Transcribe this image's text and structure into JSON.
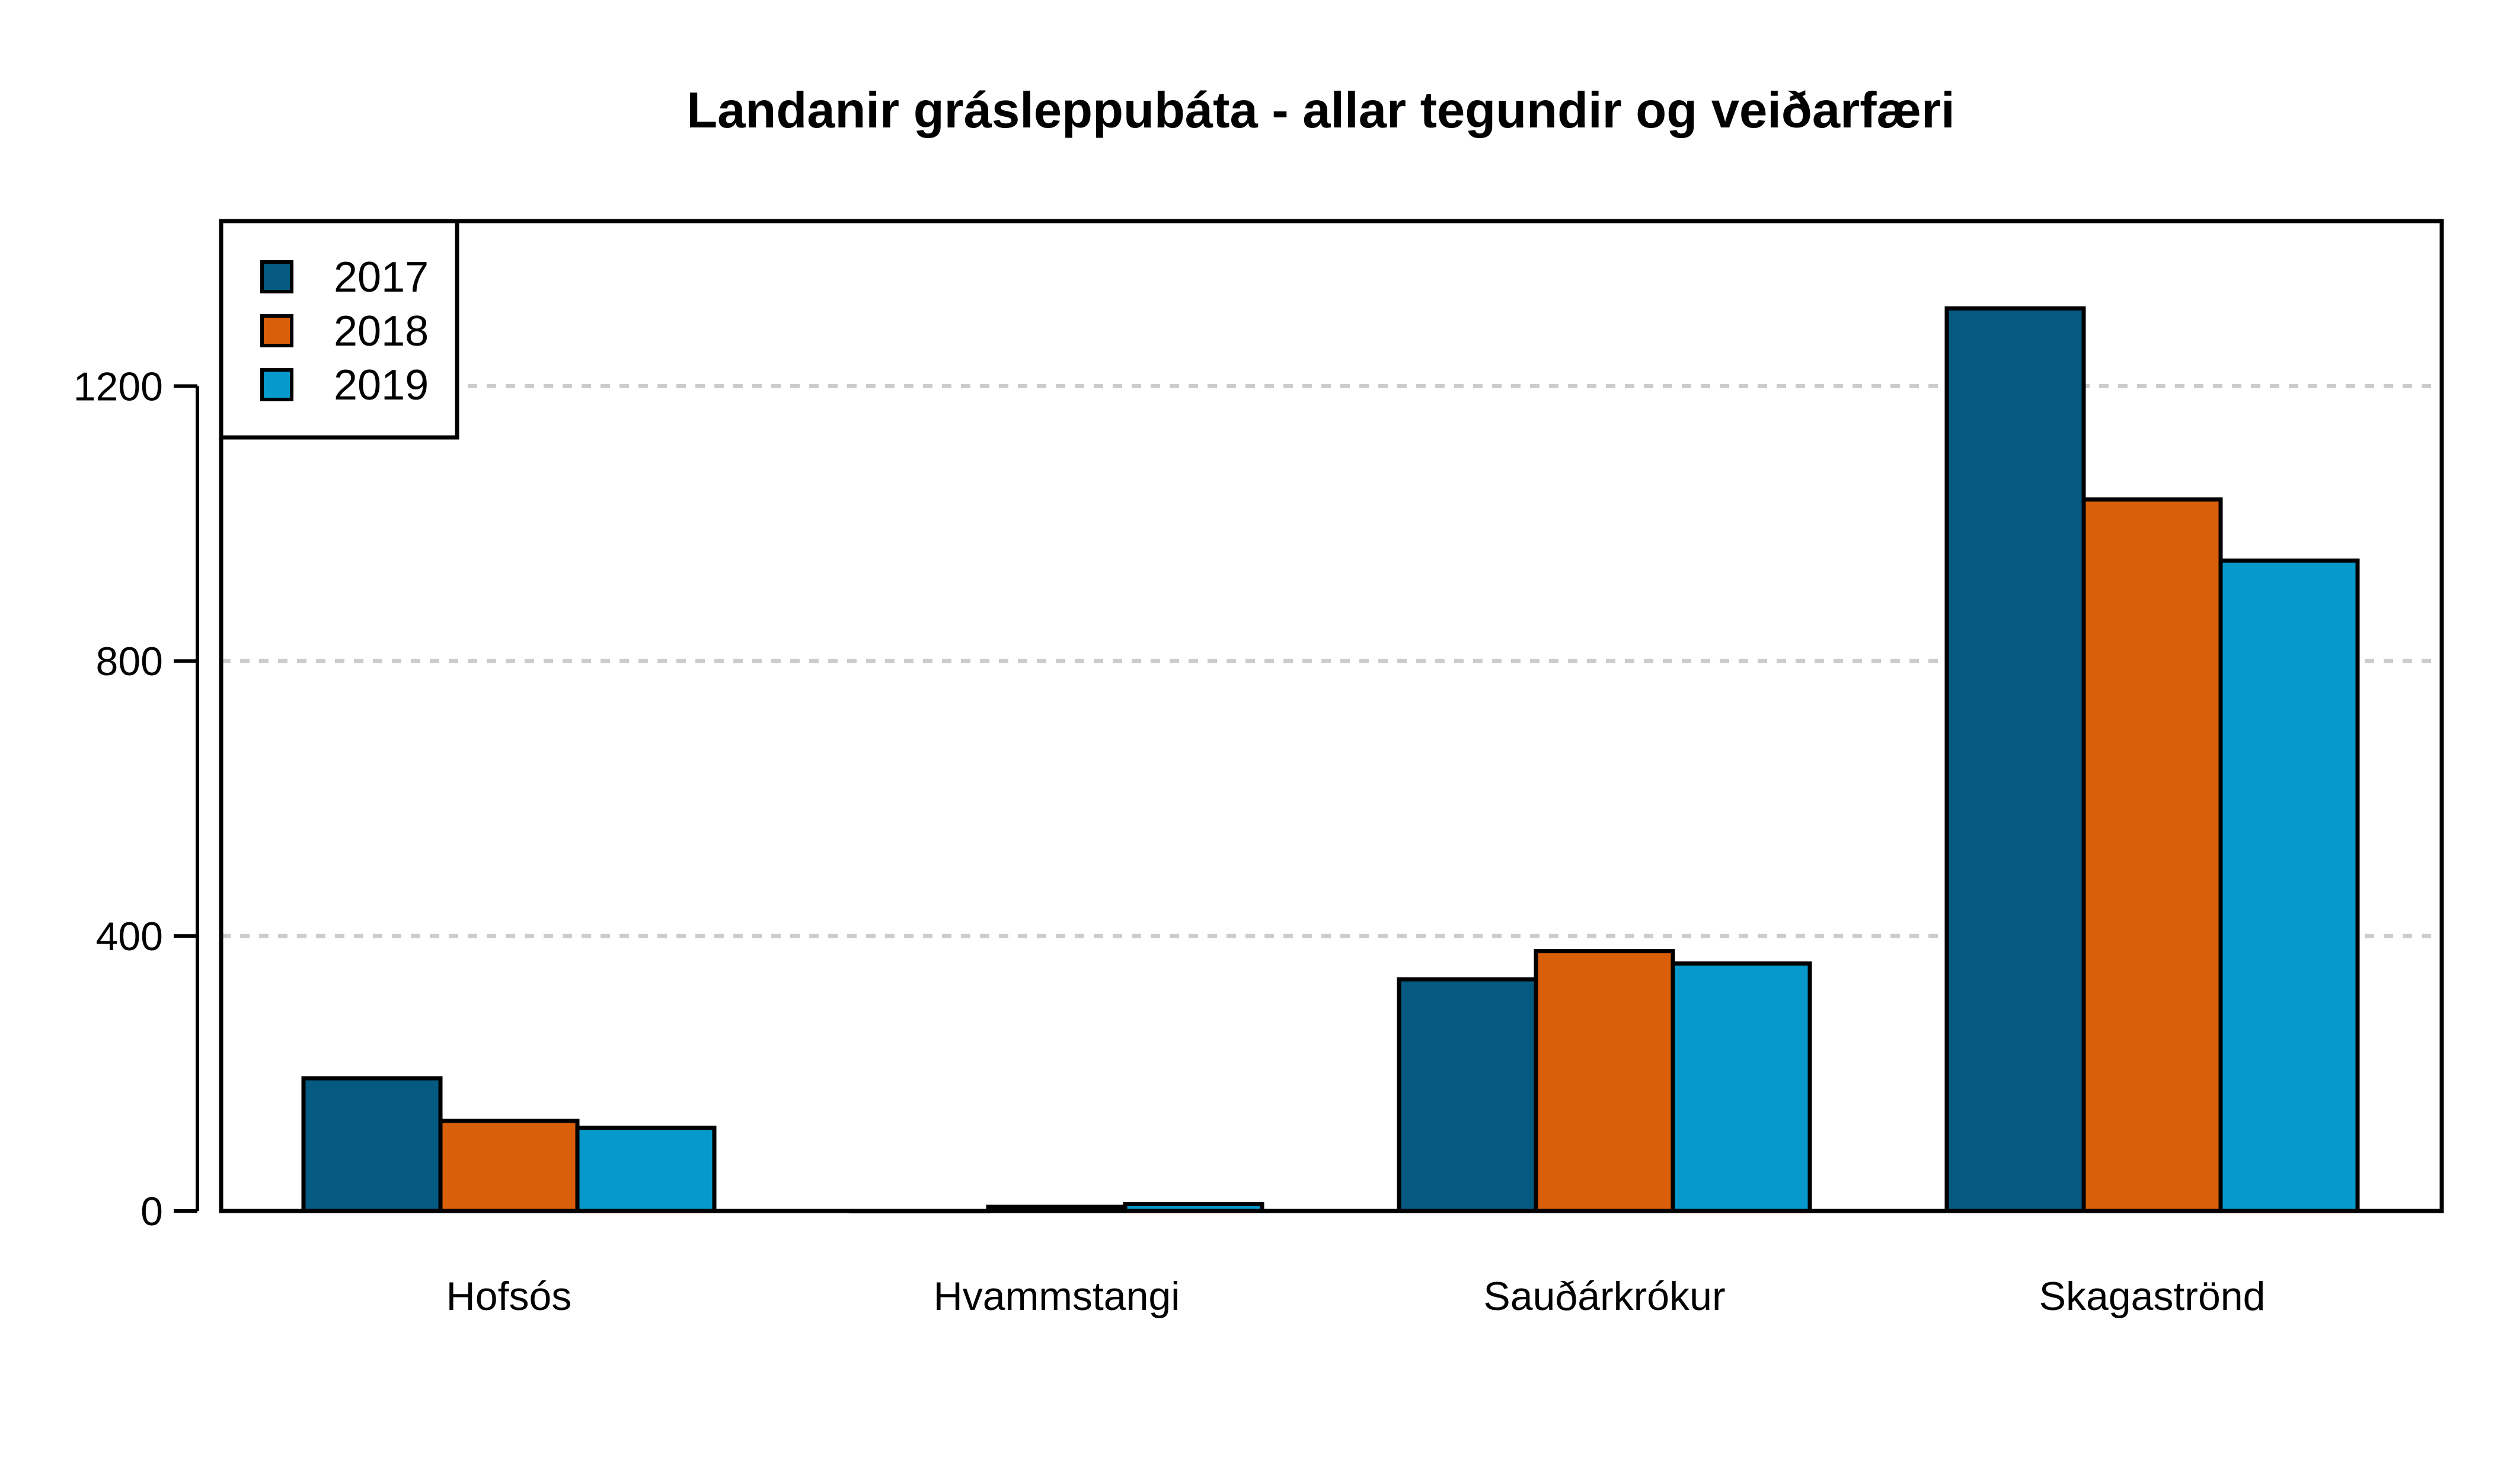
{
  "chart_data": {
    "type": "bar",
    "title": "Landanir grásleppubáta - allar tegundir og veiðarfæri",
    "xlabel": "",
    "ylabel": "",
    "categories": [
      "Hofsós",
      "Hvammstangi",
      "Sauðárkrókur",
      "Skagaströnd"
    ],
    "series": [
      {
        "name": "2017",
        "color": "#045a80",
        "values": [
          193,
          0,
          337,
          1313
        ]
      },
      {
        "name": "2018",
        "color": "#d95f0a",
        "values": [
          131,
          6,
          378,
          1035
        ]
      },
      {
        "name": "2019",
        "color": "#0599cc",
        "values": [
          121,
          10,
          360,
          946
        ]
      }
    ],
    "ylim": [
      0,
      1440
    ],
    "yticks": [
      0,
      400,
      800,
      1200
    ],
    "grid": true,
    "legend": "top-left"
  }
}
